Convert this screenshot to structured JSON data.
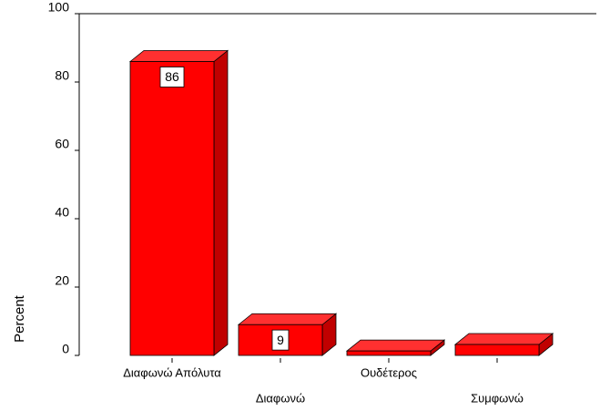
{
  "chart_data": {
    "type": "bar3d",
    "y_label": "Percent",
    "categories": [
      "Διαφωνώ Απόλυτα",
      "Διαφωνώ",
      "Ουδέτερος",
      "Συμφωνώ"
    ],
    "values": [
      86,
      9,
      1.3,
      3.2
    ],
    "value_labels": [
      "86",
      "9",
      null,
      null
    ],
    "color": "#ff0000",
    "ylim": [
      0,
      100
    ],
    "yticks": [
      0,
      20,
      40,
      60,
      80,
      100
    ]
  }
}
